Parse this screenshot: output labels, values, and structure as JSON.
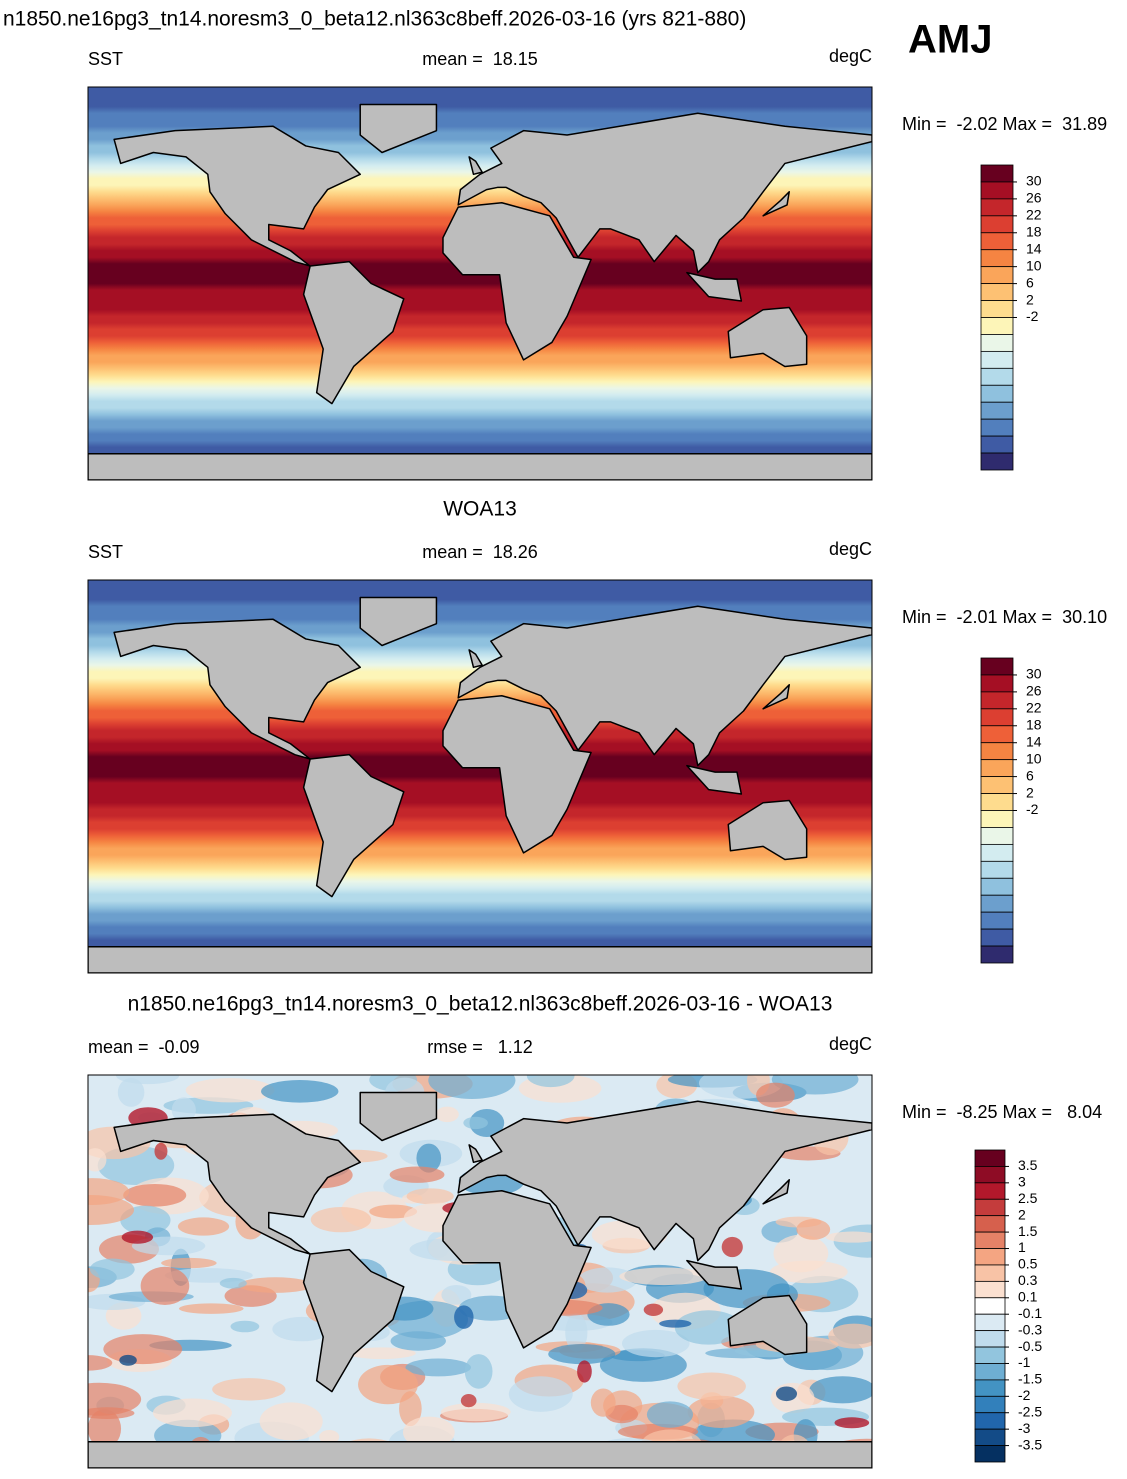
{
  "title": "n1850.ne16pg3_tn14.noresm3_0_beta12.nl363c8beff.2026-03-16 (yrs 821-880)",
  "season": "AMJ",
  "panels": [
    {
      "variable": "SST",
      "mean": "mean =  18.15",
      "units": "degC",
      "range": "Min =  -2.02 Max =  31.89",
      "colorbar": {
        "labels": [
          30,
          26,
          22,
          18,
          14,
          10,
          6,
          2,
          -2
        ],
        "colors": [
          "#67001f",
          "#a50f24",
          "#c4262b",
          "#dc3f31",
          "#ee6038",
          "#f58442",
          "#faa55a",
          "#fdc173",
          "#fedc8e",
          "#fdf5b8",
          "#eaf6e8",
          "#d3ecf0",
          "#b3daea",
          "#8fc1de",
          "#6c9fcd",
          "#527fbd",
          "#3f5ba4",
          "#2f2b6e"
        ]
      }
    },
    {
      "title": "WOA13",
      "variable": "SST",
      "mean": "mean =  18.26",
      "units": "degC",
      "range": "Min =  -2.01 Max =  30.10",
      "colorbar": {
        "labels": [
          30,
          26,
          22,
          18,
          14,
          10,
          6,
          2,
          -2
        ],
        "colors": [
          "#67001f",
          "#a50f24",
          "#c4262b",
          "#dc3f31",
          "#ee6038",
          "#f58442",
          "#faa55a",
          "#fdc173",
          "#fedc8e",
          "#fdf5b8",
          "#eaf6e8",
          "#d3ecf0",
          "#b3daea",
          "#8fc1de",
          "#6c9fcd",
          "#527fbd",
          "#3f5ba4",
          "#2f2b6e"
        ]
      }
    },
    {
      "title": "n1850.ne16pg3_tn14.noresm3_0_beta12.nl363c8beff.2026-03-16 - WOA13",
      "mean": "mean =  -0.09",
      "rmse": "rmse =   1.12",
      "units": "degC",
      "range": "Min =  -8.25 Max =   8.04",
      "colorbar": {
        "labels": [
          3.5,
          3,
          2.5,
          2,
          1.5,
          1,
          0.5,
          0.3,
          0.1,
          -0.1,
          -0.3,
          -0.5,
          -1,
          -1.5,
          -2,
          -2.5,
          -3,
          -3.5
        ],
        "colors": [
          "#67001f",
          "#8e0c25",
          "#b2182b",
          "#c43c3c",
          "#d6604d",
          "#e58267",
          "#f4a582",
          "#f8c3a6",
          "#fbe0d0",
          "#ffffff",
          "#dbeaf3",
          "#c0dced",
          "#92c5de",
          "#6eaed3",
          "#4393c3",
          "#3280bb",
          "#2166ac",
          "#134b87",
          "#053061"
        ]
      }
    }
  ]
}
